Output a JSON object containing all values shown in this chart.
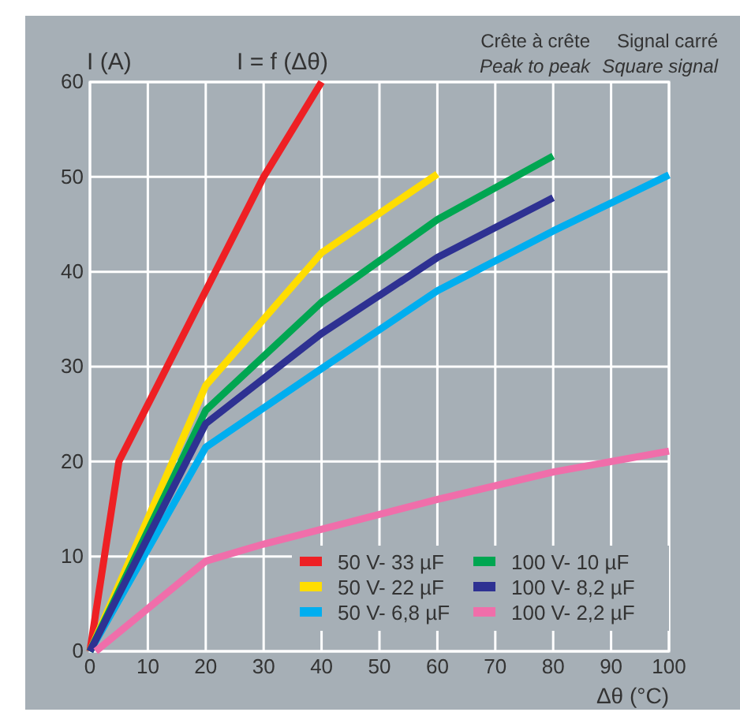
{
  "chart_data": {
    "type": "line",
    "title": "I = f (Δθ)",
    "ylabel": "I (A)",
    "xlabel": "Δθ (°C)",
    "annotations": [
      "Crête à crête",
      "Peak to peak",
      "Signal carré",
      "Square signal"
    ],
    "xlim": [
      0,
      100
    ],
    "ylim": [
      0,
      60
    ],
    "xticks": [
      0,
      10,
      20,
      30,
      40,
      50,
      60,
      70,
      80,
      90,
      100
    ],
    "yticks": [
      0,
      10,
      20,
      30,
      40,
      50,
      60
    ],
    "grid": true,
    "legend": "bottom right",
    "line_style": "solid",
    "marker": "none",
    "series": [
      {
        "name": "50 V- 33 µF",
        "color": "#ee2024",
        "x": [
          0,
          5,
          30,
          40
        ],
        "values": [
          0,
          20,
          50,
          60
        ]
      },
      {
        "name": "50 V- 22 µF",
        "color": "#ffdd00",
        "x": [
          0,
          20,
          40,
          60
        ],
        "values": [
          0,
          28,
          42,
          50.3
        ]
      },
      {
        "name": "50 V- 6,8 µF",
        "color": "#00aeef",
        "x": [
          0,
          20,
          40,
          60,
          80,
          100
        ],
        "values": [
          0,
          21.5,
          29.8,
          38,
          44.3,
          50.2
        ]
      },
      {
        "name": "100 V- 10 µF",
        "color": "#00a651",
        "x": [
          0,
          20,
          40,
          60,
          80
        ],
        "values": [
          0,
          25.4,
          36.8,
          45.5,
          52.2
        ]
      },
      {
        "name": "100 V- 8,2 µF",
        "color": "#2e3192",
        "x": [
          0,
          20,
          40,
          60,
          80
        ],
        "values": [
          0,
          24,
          33.5,
          41.5,
          47.8
        ]
      },
      {
        "name": "100 V- 2,2 µF",
        "color": "#f06eaa",
        "x": [
          1,
          20,
          30,
          60,
          80,
          100
        ],
        "values": [
          0,
          9.5,
          11.3,
          16,
          18.9,
          21.1
        ]
      }
    ]
  }
}
